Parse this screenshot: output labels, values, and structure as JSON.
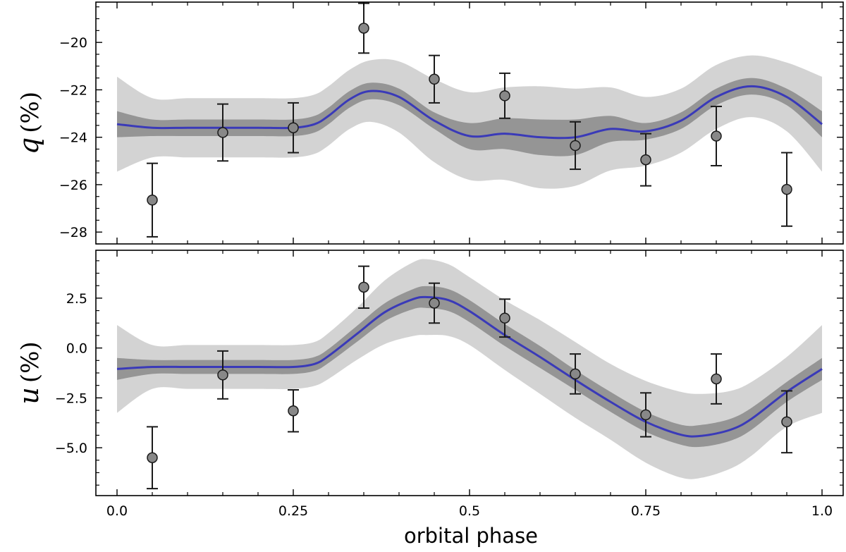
{
  "chart_data": [
    {
      "type": "line",
      "panel": "top",
      "ylabel_var": "q",
      "ylabel_unit": "(%)",
      "xlim": [
        -0.03,
        1.03
      ],
      "ylim": [
        -28.5,
        -18.3
      ],
      "yticks": [
        -20,
        -22,
        -24,
        -26,
        -28
      ],
      "ytick_labels": [
        "−20",
        "−22",
        "−24",
        "−26",
        "−28"
      ],
      "points": [
        {
          "x": 0.05,
          "y": -26.65,
          "err": 1.55
        },
        {
          "x": 0.15,
          "y": -23.8,
          "err": 1.2
        },
        {
          "x": 0.25,
          "y": -23.6,
          "err": 1.05
        },
        {
          "x": 0.35,
          "y": -19.4,
          "err": 1.05
        },
        {
          "x": 0.45,
          "y": -21.55,
          "err": 1.0
        },
        {
          "x": 0.55,
          "y": -22.25,
          "err": 0.95
        },
        {
          "x": 0.65,
          "y": -24.35,
          "err": 1.0
        },
        {
          "x": 0.75,
          "y": -24.95,
          "err": 1.1
        },
        {
          "x": 0.85,
          "y": -23.95,
          "err": 1.25
        },
        {
          "x": 0.95,
          "y": -26.2,
          "err": 1.55
        }
      ],
      "model": {
        "x": [
          0.0,
          0.05,
          0.1,
          0.15,
          0.2,
          0.25,
          0.28,
          0.3,
          0.33,
          0.36,
          0.4,
          0.45,
          0.5,
          0.55,
          0.6,
          0.65,
          0.7,
          0.75,
          0.8,
          0.85,
          0.9,
          0.95,
          1.0
        ],
        "y": [
          -23.45,
          -23.6,
          -23.6,
          -23.6,
          -23.6,
          -23.6,
          -23.45,
          -23.1,
          -22.4,
          -22.05,
          -22.3,
          -23.3,
          -23.95,
          -23.85,
          -24.0,
          -24.0,
          -23.65,
          -23.75,
          -23.3,
          -22.3,
          -21.85,
          -22.3,
          -23.45
        ],
        "inner_halfwidth": [
          0.55,
          0.35,
          0.35,
          0.35,
          0.35,
          0.35,
          0.35,
          0.35,
          0.35,
          0.35,
          0.35,
          0.35,
          0.55,
          0.65,
          0.75,
          0.75,
          0.55,
          0.35,
          0.35,
          0.35,
          0.35,
          0.35,
          0.55
        ],
        "outer_halfwidth": [
          2.0,
          1.25,
          1.25,
          1.25,
          1.25,
          1.25,
          1.25,
          1.25,
          1.25,
          1.3,
          1.5,
          1.75,
          1.85,
          1.95,
          2.15,
          2.05,
          1.75,
          1.45,
          1.35,
          1.35,
          1.3,
          1.45,
          2.0
        ]
      }
    },
    {
      "type": "line",
      "panel": "bottom",
      "ylabel_var": "u",
      "ylabel_unit": "(%)",
      "xlabel": "orbital phase",
      "xlim": [
        -0.03,
        1.03
      ],
      "ylim": [
        -7.4,
        4.9
      ],
      "xticks": [
        0.0,
        0.25,
        0.5,
        0.75,
        1.0
      ],
      "xtick_labels": [
        "0.0",
        "0.25",
        "0.5",
        "0.75",
        "1.0"
      ],
      "yticks": [
        2.5,
        0.0,
        -2.5,
        -5.0
      ],
      "ytick_labels": [
        "2.5",
        "0.0",
        "−2.5",
        "−5.0"
      ],
      "points": [
        {
          "x": 0.05,
          "y": -5.5,
          "err": 1.55
        },
        {
          "x": 0.15,
          "y": -1.35,
          "err": 1.2
        },
        {
          "x": 0.25,
          "y": -3.15,
          "err": 1.05
        },
        {
          "x": 0.35,
          "y": 3.05,
          "err": 1.05
        },
        {
          "x": 0.45,
          "y": 2.25,
          "err": 1.0
        },
        {
          "x": 0.55,
          "y": 1.5,
          "err": 0.95
        },
        {
          "x": 0.65,
          "y": -1.3,
          "err": 1.0
        },
        {
          "x": 0.75,
          "y": -3.35,
          "err": 1.1
        },
        {
          "x": 0.85,
          "y": -1.55,
          "err": 1.25
        },
        {
          "x": 0.95,
          "y": -3.7,
          "err": 1.55
        }
      ],
      "model": {
        "x": [
          0.0,
          0.05,
          0.1,
          0.15,
          0.2,
          0.25,
          0.28,
          0.3,
          0.34,
          0.38,
          0.42,
          0.44,
          0.47,
          0.5,
          0.55,
          0.6,
          0.65,
          0.7,
          0.75,
          0.8,
          0.83,
          0.87,
          0.9,
          0.95,
          1.0
        ],
        "y": [
          -1.05,
          -0.95,
          -0.95,
          -0.95,
          -0.95,
          -0.95,
          -0.8,
          -0.4,
          0.7,
          1.8,
          2.45,
          2.55,
          2.4,
          1.85,
          0.65,
          -0.45,
          -1.6,
          -2.7,
          -3.7,
          -4.35,
          -4.4,
          -4.1,
          -3.55,
          -2.2,
          -1.05
        ],
        "inner_halfwidth": [
          0.55,
          0.35,
          0.35,
          0.35,
          0.35,
          0.35,
          0.35,
          0.35,
          0.4,
          0.45,
          0.5,
          0.55,
          0.55,
          0.55,
          0.55,
          0.55,
          0.5,
          0.5,
          0.5,
          0.5,
          0.55,
          0.55,
          0.55,
          0.5,
          0.55
        ],
        "outer_halfwidth": [
          2.2,
          1.1,
          1.1,
          1.1,
          1.1,
          1.1,
          1.1,
          1.15,
          1.3,
          1.6,
          1.85,
          1.9,
          1.8,
          1.7,
          1.75,
          1.85,
          1.9,
          1.9,
          2.05,
          2.15,
          2.1,
          1.95,
          1.85,
          1.75,
          2.2
        ]
      }
    }
  ],
  "colors": {
    "model_line": "#3a3ab8",
    "inner_band": "#959595",
    "outer_band": "#d3d3d3",
    "marker_fill": "#888888",
    "marker_edge": "#1a1a1a",
    "axis": "#000000"
  }
}
